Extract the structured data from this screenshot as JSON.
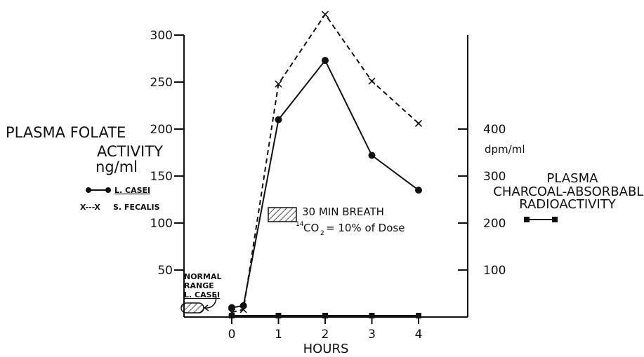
{
  "chart_data": {
    "type": "line",
    "x_ticks": [
      0,
      1,
      2,
      3,
      4
    ],
    "xlabel": "HOURS",
    "xlim": [
      -0.8,
      4.5
    ],
    "left_axis": {
      "title_line1": "PLASMA FOLATE",
      "title_line2": "ACTIVITY",
      "title_line3": "ng/ml",
      "ticks": [
        50,
        100,
        150,
        200,
        250,
        300
      ],
      "ylim": [
        0,
        300
      ]
    },
    "right_axis": {
      "unit": "dpm/ml",
      "title_line1": "PLASMA",
      "title_line2": "CHARCOAL-ABSORBABLE",
      "title_line3": "RADIOACTIVITY",
      "ticks": [
        100,
        200,
        300,
        400
      ],
      "ylim": [
        0,
        600
      ]
    },
    "series": [
      {
        "name": "L. CASEI",
        "axis": "left",
        "style": "solid-circle",
        "x": [
          0,
          0.25,
          1,
          2,
          3,
          4
        ],
        "y": [
          10,
          12,
          210,
          273,
          172,
          135
        ]
      },
      {
        "name": "S. FECALIS",
        "axis": "left",
        "style": "dashed-x",
        "x": [
          0,
          0.25,
          1,
          2,
          3,
          4
        ],
        "y": [
          5,
          8,
          248,
          322,
          251,
          206
        ]
      },
      {
        "name": "",
        "axis": "right",
        "style": "solid-square",
        "x": [
          0,
          1,
          2,
          3,
          4
        ],
        "y": [
          3,
          3,
          3,
          3,
          3
        ]
      }
    ],
    "legend": {
      "casei_label": "L. CASEI",
      "fecalis_marker": "X---X",
      "fecalis_label": "S. FECALIS"
    },
    "annotations": {
      "breath_line1": "30 MIN BREATH",
      "breath_sup": "14",
      "breath_line2": "CO",
      "breath_sub": "2",
      "breath_line3": "= 10% of Dose",
      "normal_line1": "NORMAL",
      "normal_line2": "RANGE",
      "normal_line3": "L. CASEI"
    },
    "colors": {
      "ink": "#111111",
      "background": "#ffffff"
    }
  }
}
